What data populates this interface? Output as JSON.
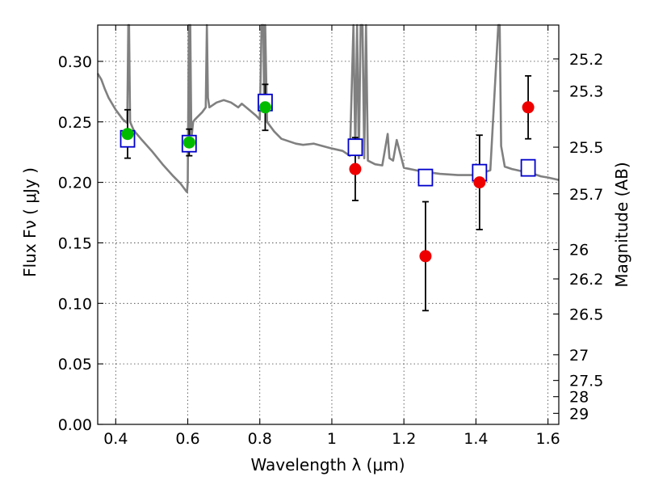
{
  "chart_data": {
    "type": "scatter",
    "xlabel": "Wavelength  λ (μm)",
    "ylabel": "Flux  Fν  ( μJy )",
    "ylabel_right": "Magnitude (AB)",
    "xlim": [
      0.35,
      1.63
    ],
    "ylim": [
      0.0,
      0.33
    ],
    "grid": true,
    "x_ticks": [
      {
        "value": 0.4,
        "label": "0.4"
      },
      {
        "value": 0.6,
        "label": "0.6"
      },
      {
        "value": 0.8,
        "label": "0.8"
      },
      {
        "value": 1.0,
        "label": "1"
      },
      {
        "value": 1.2,
        "label": "1.2"
      },
      {
        "value": 1.4,
        "label": "1.4"
      },
      {
        "value": 1.6,
        "label": "1.6"
      }
    ],
    "y_ticks": [
      {
        "value": 0.0,
        "label": "0.00"
      },
      {
        "value": 0.05,
        "label": "0.05"
      },
      {
        "value": 0.1,
        "label": "0.10"
      },
      {
        "value": 0.15,
        "label": "0.15"
      },
      {
        "value": 0.2,
        "label": "0.20"
      },
      {
        "value": 0.25,
        "label": "0.25"
      },
      {
        "value": 0.3,
        "label": "0.30"
      }
    ],
    "mag_ticks": [
      {
        "value": 25.2,
        "label": "25.2"
      },
      {
        "value": 25.3,
        "label": "25.3"
      },
      {
        "value": 25.5,
        "label": "25.5"
      },
      {
        "value": 25.7,
        "label": "25.7"
      },
      {
        "value": 26,
        "label": "26"
      },
      {
        "value": 26.2,
        "label": "26.2"
      },
      {
        "value": 26.5,
        "label": "26.5"
      },
      {
        "value": 27,
        "label": "27"
      },
      {
        "value": 27.5,
        "label": "27.5"
      },
      {
        "value": 28,
        "label": "28"
      },
      {
        "value": 29,
        "label": "29"
      }
    ],
    "spectrum": {
      "color": "#808080",
      "x": [
        0.35,
        0.36,
        0.37,
        0.38,
        0.4,
        0.42,
        0.432,
        0.435,
        0.437,
        0.44,
        0.45,
        0.47,
        0.5,
        0.53,
        0.56,
        0.58,
        0.595,
        0.598,
        0.6,
        0.603,
        0.605,
        0.607,
        0.61,
        0.615,
        0.62,
        0.64,
        0.65,
        0.653,
        0.656,
        0.66,
        0.67,
        0.68,
        0.7,
        0.72,
        0.74,
        0.75,
        0.77,
        0.79,
        0.8,
        0.805,
        0.81,
        0.812,
        0.815,
        0.82,
        0.84,
        0.86,
        0.88,
        0.9,
        0.92,
        0.95,
        1.0,
        1.03,
        1.05,
        1.06,
        1.065,
        1.07,
        1.075,
        1.08,
        1.085,
        1.09,
        1.095,
        1.1,
        1.12,
        1.14,
        1.155,
        1.16,
        1.17,
        1.18,
        1.2,
        1.25,
        1.3,
        1.35,
        1.4,
        1.44,
        1.462,
        1.466,
        1.47,
        1.48,
        1.5,
        1.53,
        1.56,
        1.58,
        1.6,
        1.63
      ],
      "y": [
        0.29,
        0.285,
        0.277,
        0.27,
        0.26,
        0.252,
        0.249,
        0.33,
        0.33,
        0.25,
        0.243,
        0.236,
        0.226,
        0.215,
        0.205,
        0.199,
        0.193,
        0.192,
        0.2,
        0.33,
        0.238,
        0.33,
        0.236,
        0.25,
        0.252,
        0.258,
        0.262,
        0.33,
        0.27,
        0.262,
        0.264,
        0.266,
        0.268,
        0.266,
        0.262,
        0.265,
        0.26,
        0.255,
        0.252,
        0.33,
        0.33,
        0.26,
        0.33,
        0.25,
        0.242,
        0.236,
        0.234,
        0.232,
        0.231,
        0.232,
        0.228,
        0.226,
        0.222,
        0.33,
        0.226,
        0.33,
        0.22,
        0.33,
        0.33,
        0.22,
        0.33,
        0.218,
        0.215,
        0.214,
        0.24,
        0.22,
        0.218,
        0.235,
        0.212,
        0.209,
        0.207,
        0.206,
        0.206,
        0.21,
        0.33,
        0.33,
        0.23,
        0.213,
        0.211,
        0.209,
        0.207,
        0.205,
        0.204,
        0.202
      ]
    },
    "series": [
      {
        "marker": "circle",
        "color": "#00bb00",
        "x": [
          0.433,
          0.604,
          0.815
        ],
        "y": [
          0.24,
          0.233,
          0.262
        ],
        "err": [
          0.02,
          0.011,
          0.019
        ]
      },
      {
        "marker": "circle",
        "color": "#ee0000",
        "x": [
          1.065,
          1.26,
          1.41,
          1.545
        ],
        "y": [
          0.211,
          0.139,
          0.2,
          0.262
        ],
        "err": [
          0.026,
          0.045,
          0.039,
          0.026
        ]
      },
      {
        "marker": "square",
        "color": "#0000cc",
        "x": [
          0.433,
          0.604,
          0.815,
          1.065,
          1.26,
          1.41,
          1.545
        ],
        "y": [
          0.236,
          0.232,
          0.266,
          0.229,
          0.204,
          0.208,
          0.212
        ]
      }
    ]
  }
}
